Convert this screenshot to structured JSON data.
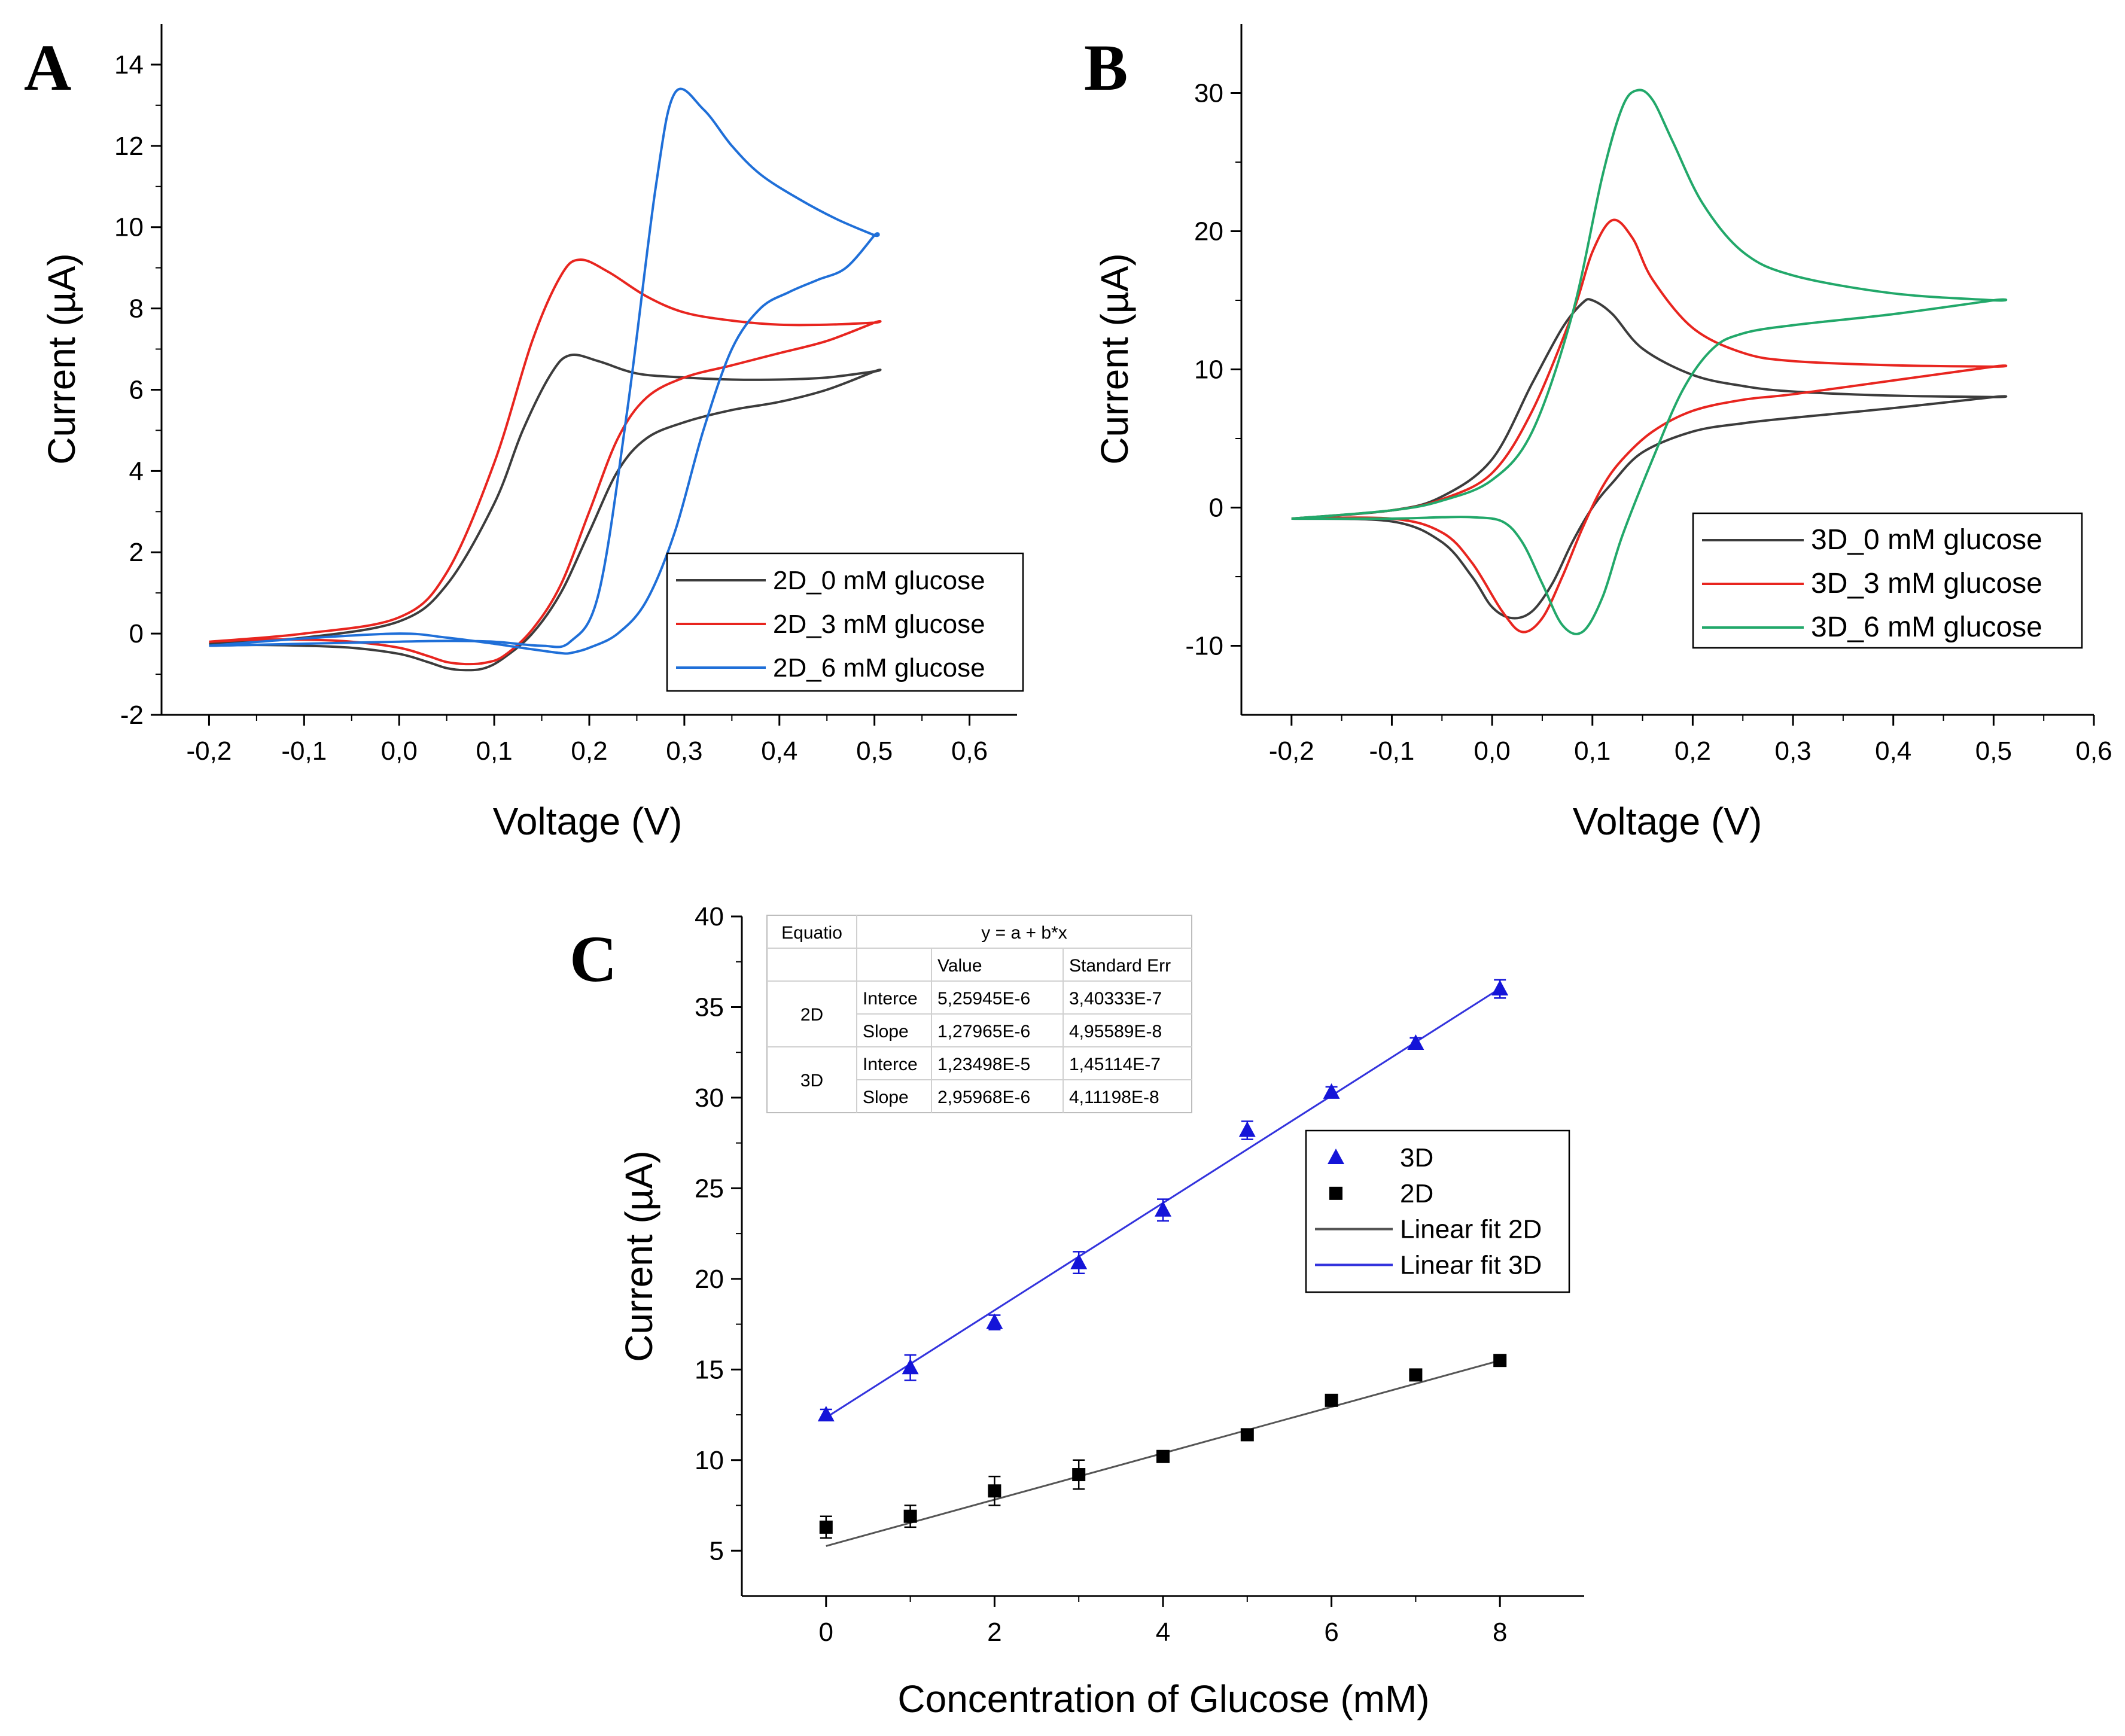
{
  "panels": {
    "a": "A",
    "b": "B",
    "c": "C"
  },
  "chart_data": [
    {
      "id": "A",
      "type": "line",
      "xlabel": "Voltage (V)",
      "ylabel": "Current (µA)",
      "xlim": [
        -0.25,
        0.65
      ],
      "ylim": [
        -2,
        15
      ],
      "xticks": [
        -0.2,
        -0.1,
        0.0,
        0.1,
        0.2,
        0.3,
        0.4,
        0.5,
        0.6
      ],
      "xtick_labels": [
        "-0,2",
        "-0,1",
        "0,0",
        "0,1",
        "0,2",
        "0,3",
        "0,4",
        "0,5",
        "0,6"
      ],
      "yticks": [
        -2,
        0,
        2,
        4,
        6,
        8,
        10,
        12,
        14
      ],
      "ytick_labels": [
        "-2",
        "0",
        "2",
        "4",
        "6",
        "8",
        "10",
        "12",
        "14"
      ],
      "legend": "bottom-right",
      "series": [
        {
          "name": "2D_0 mM glucose",
          "color": "#3c3c3c",
          "x": [
            -0.2,
            -0.1,
            0.0,
            0.05,
            0.1,
            0.13,
            0.16,
            0.18,
            0.21,
            0.25,
            0.3,
            0.35,
            0.4,
            0.45,
            0.5,
            0.5,
            0.45,
            0.4,
            0.35,
            0.3,
            0.26,
            0.23,
            0.2,
            0.17,
            0.14,
            0.11,
            0.09,
            0.07,
            0.05,
            0.03,
            0.0,
            -0.05,
            -0.1,
            -0.15,
            -0.2
          ],
          "values": [
            -0.25,
            -0.1,
            0.3,
            1.2,
            3.2,
            5.0,
            6.4,
            6.85,
            6.7,
            6.4,
            6.3,
            6.25,
            6.25,
            6.3,
            6.45,
            6.45,
            6.0,
            5.7,
            5.5,
            5.2,
            4.8,
            4.0,
            2.5,
            1.0,
            0.0,
            -0.6,
            -0.85,
            -0.9,
            -0.85,
            -0.7,
            -0.5,
            -0.35,
            -0.3,
            -0.28,
            -0.3
          ]
        },
        {
          "name": "2D_3 mM glucose",
          "color": "#e8251f",
          "x": [
            -0.2,
            -0.1,
            0.0,
            0.05,
            0.1,
            0.14,
            0.17,
            0.19,
            0.22,
            0.26,
            0.3,
            0.35,
            0.4,
            0.45,
            0.5,
            0.5,
            0.45,
            0.4,
            0.35,
            0.3,
            0.26,
            0.23,
            0.2,
            0.17,
            0.14,
            0.11,
            0.09,
            0.07,
            0.05,
            0.03,
            0.0,
            -0.05,
            -0.1,
            -0.15,
            -0.2
          ],
          "values": [
            -0.2,
            0.0,
            0.4,
            1.5,
            4.2,
            7.2,
            8.8,
            9.2,
            8.9,
            8.3,
            7.9,
            7.7,
            7.6,
            7.6,
            7.65,
            7.65,
            7.2,
            6.9,
            6.6,
            6.3,
            5.8,
            4.8,
            3.0,
            1.2,
            0.1,
            -0.55,
            -0.72,
            -0.75,
            -0.7,
            -0.55,
            -0.35,
            -0.2,
            -0.15,
            -0.15,
            -0.2
          ]
        },
        {
          "name": "2D_6 mM glucose",
          "color": "#1f6fd8",
          "x": [
            -0.2,
            -0.1,
            0.0,
            0.05,
            0.1,
            0.15,
            0.18,
            0.21,
            0.24,
            0.27,
            0.29,
            0.32,
            0.35,
            0.38,
            0.42,
            0.46,
            0.5,
            0.5,
            0.47,
            0.44,
            0.41,
            0.38,
            0.35,
            0.32,
            0.29,
            0.26,
            0.23,
            0.2,
            0.18,
            0.17,
            0.15,
            0.12,
            0.1,
            0.05,
            0.0,
            -0.1,
            -0.2
          ],
          "values": [
            -0.3,
            -0.25,
            -0.2,
            -0.18,
            -0.2,
            -0.3,
            -0.2,
            1.0,
            5.5,
            11.0,
            13.3,
            12.9,
            12.0,
            11.3,
            10.7,
            10.2,
            9.8,
            9.8,
            9.0,
            8.7,
            8.4,
            8.0,
            7.0,
            5.0,
            2.5,
            0.8,
            0.0,
            -0.35,
            -0.48,
            -0.48,
            -0.42,
            -0.32,
            -0.25,
            -0.1,
            0.0,
            -0.12,
            -0.3
          ]
        }
      ]
    },
    {
      "id": "B",
      "type": "line",
      "xlabel": "Voltage (V)",
      "ylabel": "Current (µA)",
      "xlim": [
        -0.25,
        0.6
      ],
      "ylim": [
        -15,
        35
      ],
      "xticks": [
        -0.2,
        -0.1,
        0.0,
        0.1,
        0.2,
        0.3,
        0.4,
        0.5,
        0.6
      ],
      "xtick_labels": [
        "-0,2",
        "-0,1",
        "0,0",
        "0,1",
        "0,2",
        "0,3",
        "0,4",
        "0,5",
        "0,6"
      ],
      "yticks": [
        -10,
        0,
        10,
        20,
        30
      ],
      "ytick_labels": [
        "-10",
        "0",
        "10",
        "20",
        "30"
      ],
      "legend": "bottom-right",
      "series": [
        {
          "name": "3D_0 mM glucose",
          "color": "#3c3c3c",
          "x": [
            -0.2,
            -0.1,
            -0.05,
            0.0,
            0.04,
            0.07,
            0.09,
            0.1,
            0.12,
            0.15,
            0.2,
            0.25,
            0.3,
            0.4,
            0.5,
            0.5,
            0.4,
            0.3,
            0.25,
            0.2,
            0.15,
            0.12,
            0.1,
            0.08,
            0.06,
            0.04,
            0.02,
            0.0,
            -0.02,
            -0.05,
            -0.1,
            -0.2
          ],
          "values": [
            -0.8,
            -0.2,
            0.8,
            3.5,
            9.0,
            13.0,
            14.8,
            15.0,
            14.0,
            11.5,
            9.6,
            8.8,
            8.4,
            8.1,
            8.0,
            8.0,
            7.2,
            6.5,
            6.1,
            5.5,
            4.0,
            1.8,
            0.0,
            -2.5,
            -5.5,
            -7.5,
            -8.0,
            -7.2,
            -5.0,
            -2.5,
            -1.0,
            -0.8
          ]
        },
        {
          "name": "3D_3 mM glucose",
          "color": "#e8251f",
          "x": [
            -0.2,
            -0.1,
            -0.05,
            0.0,
            0.04,
            0.08,
            0.1,
            0.12,
            0.14,
            0.16,
            0.2,
            0.25,
            0.3,
            0.4,
            0.5,
            0.5,
            0.4,
            0.3,
            0.25,
            0.2,
            0.16,
            0.13,
            0.11,
            0.09,
            0.07,
            0.05,
            0.03,
            0.01,
            -0.02,
            -0.05,
            -0.1,
            -0.2
          ],
          "values": [
            -0.8,
            -0.2,
            0.6,
            2.5,
            7.0,
            14.0,
            18.5,
            20.8,
            19.5,
            16.5,
            13.0,
            11.2,
            10.6,
            10.3,
            10.2,
            10.2,
            9.2,
            8.2,
            7.8,
            7.0,
            5.5,
            3.5,
            1.5,
            -1.5,
            -5.0,
            -8.0,
            -9.0,
            -7.5,
            -4.0,
            -1.8,
            -0.8,
            -0.8
          ]
        },
        {
          "name": "3D_6 mM glucose",
          "color": "#22a86a",
          "x": [
            -0.2,
            -0.1,
            -0.05,
            0.0,
            0.04,
            0.08,
            0.11,
            0.13,
            0.145,
            0.16,
            0.18,
            0.21,
            0.25,
            0.3,
            0.4,
            0.5,
            0.5,
            0.4,
            0.3,
            0.25,
            0.22,
            0.19,
            0.16,
            0.13,
            0.11,
            0.09,
            0.07,
            0.05,
            0.03,
            0.01,
            -0.02,
            -0.05,
            -0.1,
            -0.2
          ],
          "values": [
            -0.8,
            -0.2,
            0.5,
            2.0,
            5.5,
            14.0,
            24.0,
            29.0,
            30.2,
            29.5,
            26.5,
            22.0,
            18.5,
            16.8,
            15.5,
            15.0,
            15.0,
            14.0,
            13.2,
            12.6,
            11.5,
            8.5,
            3.5,
            -2.0,
            -6.5,
            -9.0,
            -8.5,
            -5.5,
            -2.5,
            -1.0,
            -0.7,
            -0.7,
            -0.8,
            -0.8
          ]
        }
      ]
    },
    {
      "id": "C",
      "type": "scatter",
      "xlabel": "Concentration of Glucose (mM)",
      "ylabel": "Current (µA)",
      "xlim": [
        -1,
        9
      ],
      "ylim": [
        2.5,
        40
      ],
      "xticks": [
        0,
        2,
        4,
        6,
        8
      ],
      "xtick_labels": [
        "0",
        "2",
        "4",
        "6",
        "8"
      ],
      "yticks": [
        5,
        10,
        15,
        20,
        25,
        30,
        35,
        40
      ],
      "ytick_labels": [
        "5",
        "10",
        "15",
        "20",
        "25",
        "30",
        "35",
        "40"
      ],
      "legend": "right",
      "series": [
        {
          "name": "3D",
          "color": "#1414d8",
          "marker": "triangle",
          "x": [
            0,
            1,
            2,
            3,
            4,
            5,
            6,
            7,
            8
          ],
          "values": [
            12.5,
            15.1,
            17.6,
            20.9,
            23.8,
            28.2,
            30.3,
            33.0,
            36.0
          ],
          "errors": [
            0.3,
            0.7,
            0.4,
            0.6,
            0.6,
            0.5,
            0.3,
            0.3,
            0.5
          ]
        },
        {
          "name": "2D",
          "color": "#000000",
          "marker": "square",
          "x": [
            0,
            1,
            2,
            3,
            4,
            5,
            6,
            7,
            8
          ],
          "values": [
            6.3,
            6.9,
            8.3,
            9.2,
            10.2,
            11.4,
            13.3,
            14.7,
            15.5
          ],
          "errors": [
            0.6,
            0.6,
            0.8,
            0.8,
            0.3,
            0.3,
            0.3,
            0.3,
            0.3
          ]
        }
      ],
      "fits": [
        {
          "name": "Linear fit 2D",
          "color": "#555555",
          "intercept": 5.25945,
          "slope": 1.27965
        },
        {
          "name": "Linear fit 3D",
          "color": "#3333dd",
          "intercept": 12.3498,
          "slope": 2.95968
        }
      ],
      "fit_table": {
        "header": [
          "Equatio",
          "y = a + b*x"
        ],
        "subheader": [
          "Value",
          "Standard Err"
        ],
        "rows": [
          {
            "group": "2D",
            "param": "Interce",
            "value": "5,25945E-6",
            "err": "3,40333E-7"
          },
          {
            "group": "2D",
            "param": "Slope",
            "value": "1,27965E-6",
            "err": "4,95589E-8"
          },
          {
            "group": "3D",
            "param": "Interce",
            "value": "1,23498E-5",
            "err": "1,45114E-7"
          },
          {
            "group": "3D",
            "param": "Slope",
            "value": "2,95968E-6",
            "err": "4,11198E-8"
          }
        ]
      }
    }
  ]
}
